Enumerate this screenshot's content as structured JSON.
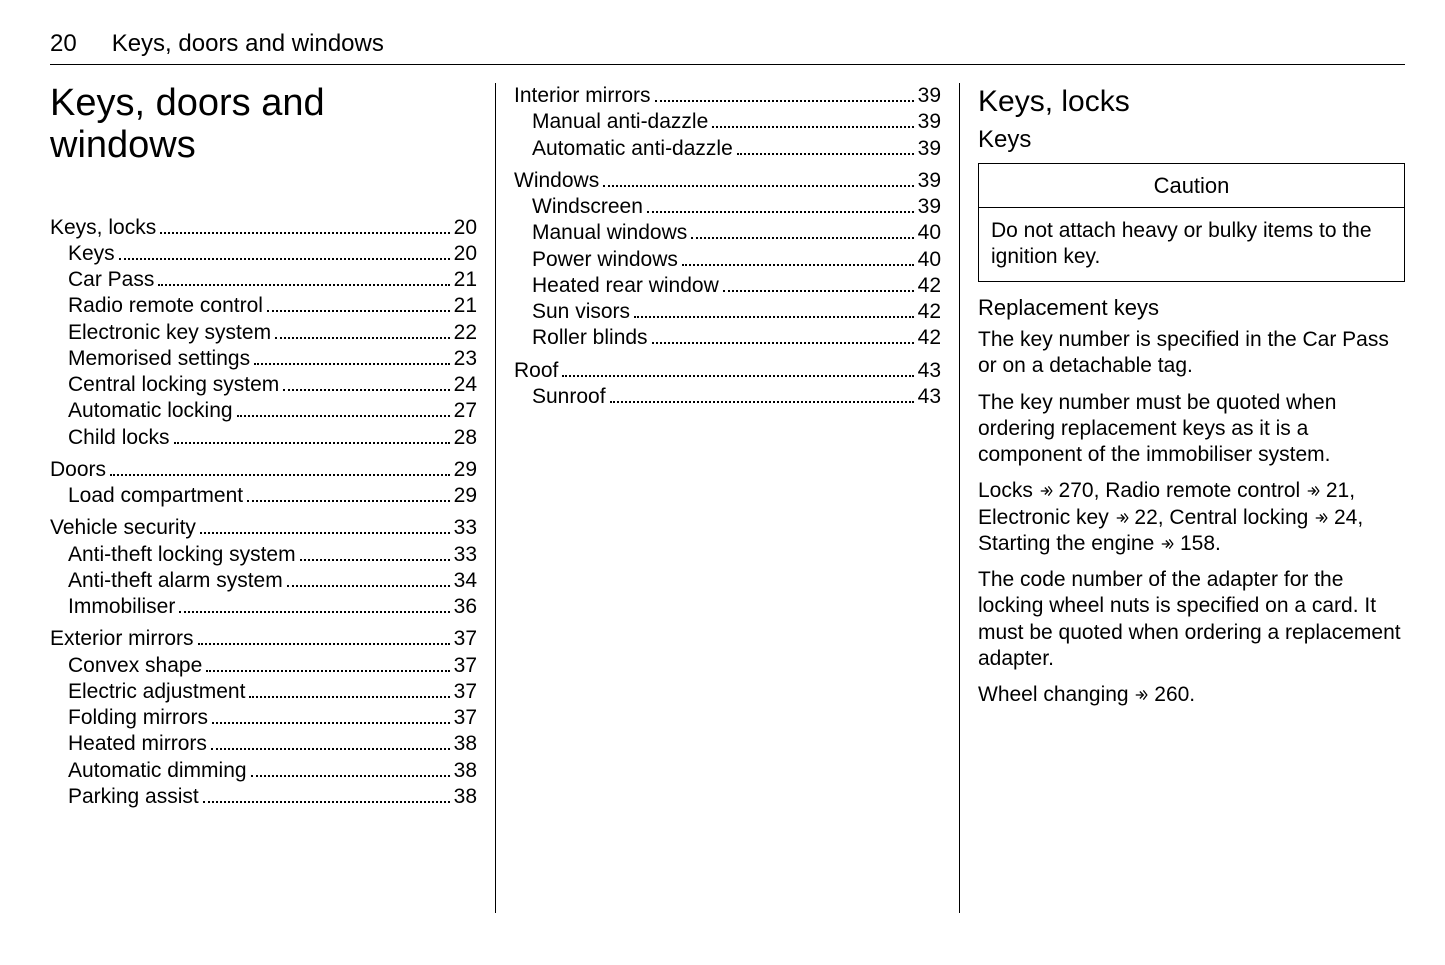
{
  "page_number": "20",
  "running_title": "Keys, doors and windows",
  "chapter_title": "Keys, doors and windows",
  "toc_col1": [
    {
      "group": [
        {
          "label": "Keys, locks",
          "page": "20",
          "sub": false
        },
        {
          "label": "Keys",
          "page": "20",
          "sub": true
        },
        {
          "label": "Car Pass",
          "page": "21",
          "sub": true
        },
        {
          "label": "Radio remote control",
          "page": "21",
          "sub": true
        },
        {
          "label": "Electronic key system",
          "page": "22",
          "sub": true
        },
        {
          "label": "Memorised settings",
          "page": "23",
          "sub": true
        },
        {
          "label": "Central locking system",
          "page": "24",
          "sub": true
        },
        {
          "label": "Automatic locking",
          "page": "27",
          "sub": true
        },
        {
          "label": "Child locks",
          "page": "28",
          "sub": true
        }
      ]
    },
    {
      "group": [
        {
          "label": "Doors",
          "page": "29",
          "sub": false
        },
        {
          "label": "Load compartment",
          "page": "29",
          "sub": true
        }
      ]
    },
    {
      "group": [
        {
          "label": "Vehicle security",
          "page": "33",
          "sub": false
        },
        {
          "label": "Anti-theft locking system",
          "page": "33",
          "sub": true
        },
        {
          "label": "Anti-theft alarm system",
          "page": "34",
          "sub": true
        },
        {
          "label": "Immobiliser",
          "page": "36",
          "sub": true
        }
      ]
    },
    {
      "group": [
        {
          "label": "Exterior mirrors",
          "page": "37",
          "sub": false
        },
        {
          "label": "Convex shape",
          "page": "37",
          "sub": true
        },
        {
          "label": "Electric adjustment",
          "page": "37",
          "sub": true
        },
        {
          "label": "Folding mirrors",
          "page": "37",
          "sub": true
        },
        {
          "label": "Heated mirrors",
          "page": "38",
          "sub": true
        },
        {
          "label": "Automatic dimming",
          "page": "38",
          "sub": true
        },
        {
          "label": "Parking assist",
          "page": "38",
          "sub": true
        }
      ]
    }
  ],
  "toc_col2": [
    {
      "group": [
        {
          "label": "Interior mirrors",
          "page": "39",
          "sub": false
        },
        {
          "label": "Manual anti-dazzle",
          "page": "39",
          "sub": true
        },
        {
          "label": "Automatic anti-dazzle",
          "page": "39",
          "sub": true
        }
      ]
    },
    {
      "group": [
        {
          "label": "Windows",
          "page": "39",
          "sub": false
        },
        {
          "label": "Windscreen",
          "page": "39",
          "sub": true
        },
        {
          "label": "Manual windows",
          "page": "40",
          "sub": true
        },
        {
          "label": "Power windows",
          "page": "40",
          "sub": true
        },
        {
          "label": "Heated rear window",
          "page": "42",
          "sub": true
        },
        {
          "label": "Sun visors",
          "page": "42",
          "sub": true
        },
        {
          "label": "Roller blinds",
          "page": "42",
          "sub": true
        }
      ]
    },
    {
      "group": [
        {
          "label": "Roof",
          "page": "43",
          "sub": false
        },
        {
          "label": "Sunroof",
          "page": "43",
          "sub": true
        }
      ]
    }
  ],
  "right": {
    "section": "Keys, locks",
    "subsection": "Keys",
    "caution_title": "Caution",
    "caution_body": "Do not attach heavy or bulky items to the ignition key.",
    "replacement_heading": "Replacement keys",
    "p1": "The key number is specified in the Car Pass or on a detachable tag.",
    "p2": "The key number must be quoted when ordering replacement keys as it is a component of the immobiliser system.",
    "p4": "The code number of the adapter for the locking wheel nuts is specified on a card. It must be quoted when ordering a replacement adapter.",
    "refs": {
      "locks_pre": "Locks ",
      "locks_pg": " 270, Radio remote control ",
      "rrc_pg": " 21, Electronic key ",
      "ek_pg": " 22, Central locking ",
      "cl_pg": " 24, Starting the engine ",
      "eng_pg": " 158.",
      "wheel_pre": "Wheel changing ",
      "wheel_pg": " 260."
    }
  }
}
